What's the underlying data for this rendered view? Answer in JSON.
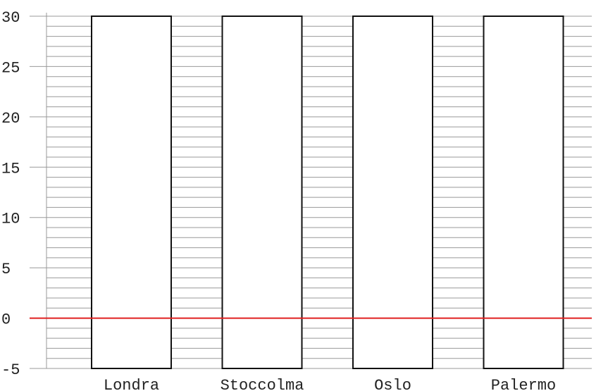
{
  "chart_data": {
    "type": "bar",
    "categories": [
      "Londra",
      "Stoccolma",
      "Oslo",
      "Palermo"
    ],
    "values": [
      30,
      30,
      30,
      30
    ],
    "base": -5,
    "ylim": [
      -5,
      30
    ],
    "yticks": [
      -5,
      0,
      5,
      10,
      15,
      20,
      25,
      30
    ],
    "ytick_labels": [
      "-5",
      "0",
      "5",
      "10",
      "15",
      "20",
      "25",
      "30"
    ],
    "minor_grid_step": 1,
    "grid": true,
    "reference_line": {
      "value": 0,
      "color": "#e02020"
    },
    "bar_fill": "#ffffff",
    "bar_stroke": "#111111",
    "grid_color": "#999999",
    "title": "",
    "xlabel": "",
    "ylabel": ""
  }
}
